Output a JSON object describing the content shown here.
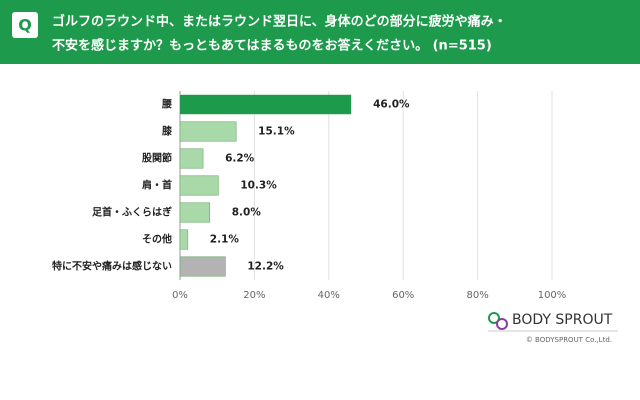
{
  "chart_data": {
    "type": "hbar",
    "question_mark": "Q",
    "title_lines": [
      "ゴルフのラウンド中、またはラウンド翌日に、身体のどの部分に疲労や痛み・",
      "不安を感じますか？もっともあてはまるものをお答えください。 (n=515)"
    ],
    "categories": [
      "腰",
      "膝",
      "股関節",
      "肩・首",
      "足首・ふくらはぎ",
      "その他",
      "特に不安や痛みは感じない"
    ],
    "values": [
      46.0,
      15.1,
      6.2,
      10.3,
      8.0,
      2.1,
      12.2
    ],
    "value_labels": [
      "46.0%",
      "15.1%",
      "6.2%",
      "10.3%",
      "8.0%",
      "2.1%",
      "12.2%"
    ],
    "colors": [
      "#1e9a4c",
      "#a9d9a9",
      "#a9d9a9",
      "#a9d9a9",
      "#a9d9a9",
      "#a9d9a9",
      "#b3b3b3"
    ],
    "xlim": [
      0,
      100
    ],
    "xticks": [
      {
        "value": 0,
        "label": "0%"
      },
      {
        "value": 20,
        "label": "20%"
      },
      {
        "value": 40,
        "label": "40%"
      },
      {
        "value": 60,
        "label": "60%"
      },
      {
        "value": 80,
        "label": "80%"
      },
      {
        "value": 100,
        "label": "100%"
      }
    ],
    "grid": true
  },
  "footer": {
    "brand": "BODY SPROUT",
    "copyright": "© BODYSPROUT Co.,Ltd."
  }
}
